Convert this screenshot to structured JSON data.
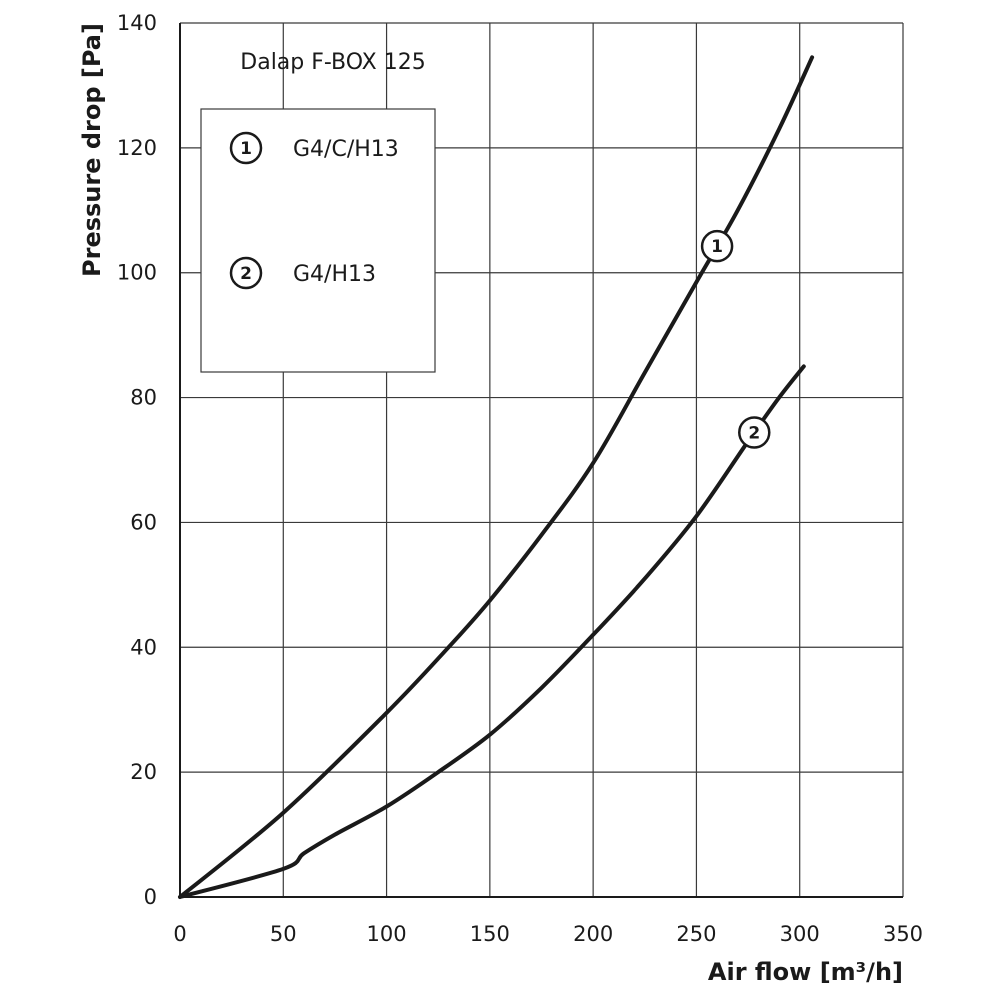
{
  "chart_data": {
    "type": "line",
    "title": "Dalap F-BOX 125",
    "xlabel": "Air flow [m³/h]",
    "ylabel": "Pressure drop [Pa]",
    "xlim": [
      0,
      350
    ],
    "ylim": [
      0,
      140
    ],
    "x_ticks": [
      "0",
      "50",
      "100",
      "150",
      "200",
      "250",
      "300",
      "350"
    ],
    "y_ticks": [
      "0",
      "20",
      "40",
      "60",
      "80",
      "100",
      "120",
      "140"
    ],
    "grid": true,
    "legend_position": "top-left",
    "series": [
      {
        "marker": "1",
        "name": "G4/C/H13",
        "x": [
          0,
          50,
          100,
          130,
          150,
          175,
          200,
          225,
          250,
          270,
          290,
          306
        ],
        "y": [
          0,
          13.5,
          29.5,
          40,
          47.5,
          58,
          69.5,
          84,
          98.5,
          110,
          123,
          134.5
        ]
      },
      {
        "marker": "2",
        "name": "G4/H13",
        "x": [
          0,
          50,
          60,
          75,
          100,
          125,
          150,
          175,
          200,
          225,
          250,
          275,
          290,
          302
        ],
        "y": [
          0,
          4.5,
          7,
          10,
          14.5,
          20,
          26,
          33.5,
          42,
          51,
          61,
          73,
          80,
          85
        ]
      }
    ]
  }
}
